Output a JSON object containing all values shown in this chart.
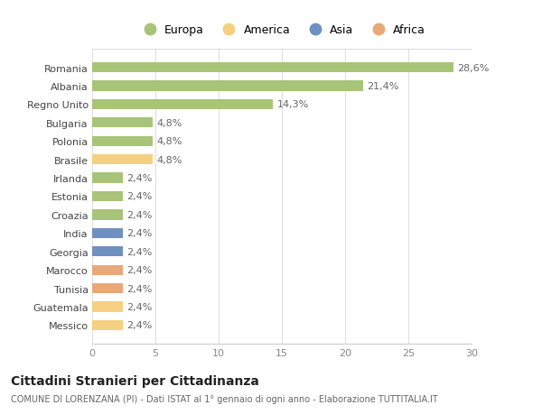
{
  "categories": [
    "Messico",
    "Guatemala",
    "Tunisia",
    "Marocco",
    "Georgia",
    "India",
    "Croazia",
    "Estonia",
    "Irlanda",
    "Brasile",
    "Polonia",
    "Bulgaria",
    "Regno Unito",
    "Albania",
    "Romania"
  ],
  "values": [
    2.4,
    2.4,
    2.4,
    2.4,
    2.4,
    2.4,
    2.4,
    2.4,
    2.4,
    4.8,
    4.8,
    4.8,
    14.3,
    21.4,
    28.6
  ],
  "labels": [
    "2,4%",
    "2,4%",
    "2,4%",
    "2,4%",
    "2,4%",
    "2,4%",
    "2,4%",
    "2,4%",
    "2,4%",
    "4,8%",
    "4,8%",
    "4,8%",
    "14,3%",
    "21,4%",
    "28,6%"
  ],
  "colors": [
    "#f5d080",
    "#f5d080",
    "#e8a878",
    "#e8a878",
    "#7090c0",
    "#7090c0",
    "#a8c478",
    "#a8c478",
    "#a8c478",
    "#f5d080",
    "#a8c478",
    "#a8c478",
    "#a8c478",
    "#a8c478",
    "#a8c478"
  ],
  "legend_labels": [
    "Europa",
    "America",
    "Asia",
    "Africa"
  ],
  "legend_colors": [
    "#a8c478",
    "#f5d080",
    "#7090c0",
    "#e8a878"
  ],
  "title": "Cittadini Stranieri per Cittadinanza",
  "subtitle": "COMUNE DI LORENZANA (PI) - Dati ISTAT al 1° gennaio di ogni anno - Elaborazione TUTTITALIA.IT",
  "xlim": [
    0,
    30
  ],
  "xticks": [
    0,
    5,
    10,
    15,
    20,
    25,
    30
  ],
  "plot_bg": "#ffffff",
  "fig_bg": "#ffffff",
  "grid_color": "#e0e0e0"
}
